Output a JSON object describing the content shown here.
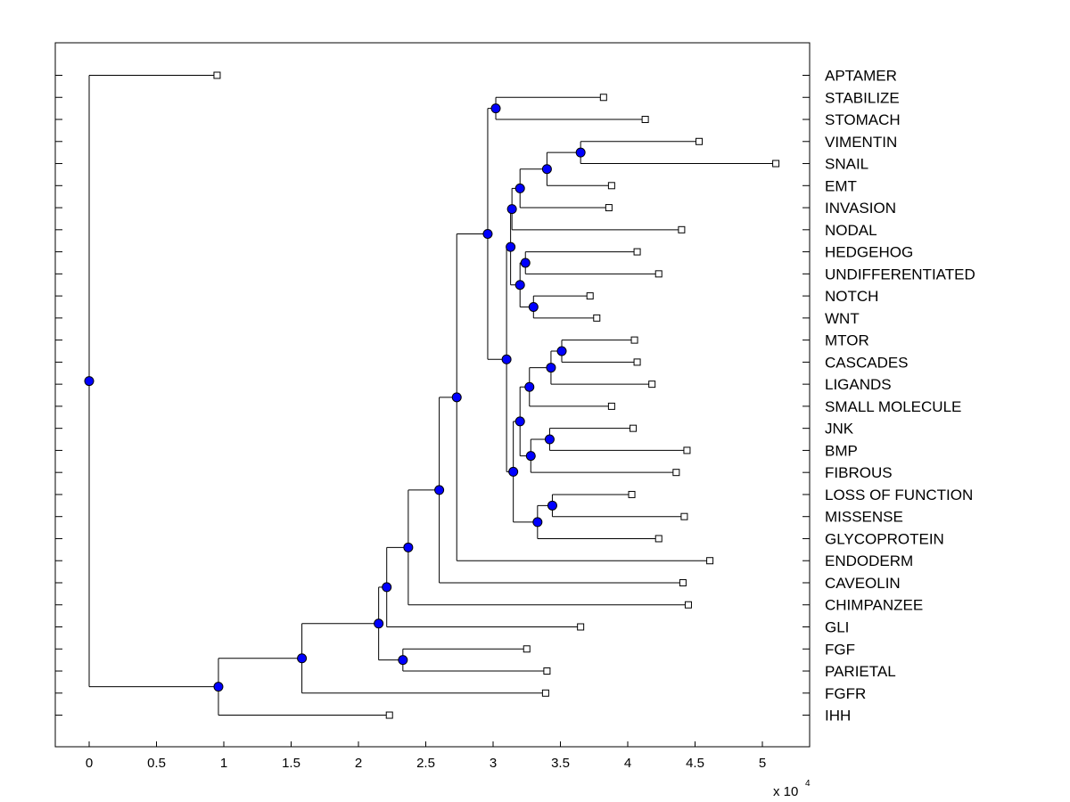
{
  "chart_data": {
    "type": "dendrogram",
    "orientation": "horizontal",
    "xaxis": {
      "ticks": [
        0,
        0.5,
        1,
        1.5,
        2,
        2.5,
        3,
        3.5,
        4,
        4.5,
        5
      ],
      "tick_labels": [
        "0",
        "0.5",
        "1",
        "1.5",
        "2",
        "2.5",
        "3",
        "3.5",
        "4",
        "4.5",
        "5"
      ],
      "range": [
        -0.25,
        5.35
      ],
      "scale_label": "x 10",
      "scale_exponent": "4"
    },
    "leaves": [
      {
        "name": "APTAMER",
        "value": 0.95
      },
      {
        "name": "STABILIZE",
        "value": 3.82
      },
      {
        "name": "STOMACH",
        "value": 4.13
      },
      {
        "name": "VIMENTIN",
        "value": 4.53
      },
      {
        "name": "SNAIL",
        "value": 5.1
      },
      {
        "name": "EMT",
        "value": 3.88
      },
      {
        "name": "INVASION",
        "value": 3.86
      },
      {
        "name": "NODAL",
        "value": 4.4
      },
      {
        "name": "HEDGEHOG",
        "value": 4.07
      },
      {
        "name": "UNDIFFERENTIATED",
        "value": 4.23
      },
      {
        "name": "NOTCH",
        "value": 3.72
      },
      {
        "name": "WNT",
        "value": 3.77
      },
      {
        "name": "MTOR",
        "value": 4.05
      },
      {
        "name": "CASCADES",
        "value": 4.07
      },
      {
        "name": "LIGANDS",
        "value": 4.18
      },
      {
        "name": "SMALL MOLECULE",
        "value": 3.88
      },
      {
        "name": "JNK",
        "value": 4.04
      },
      {
        "name": "BMP",
        "value": 4.44
      },
      {
        "name": "FIBROUS",
        "value": 4.36
      },
      {
        "name": "LOSS OF FUNCTION",
        "value": 4.03
      },
      {
        "name": "MISSENSE",
        "value": 4.42
      },
      {
        "name": "GLYCOPROTEIN",
        "value": 4.23
      },
      {
        "name": "ENDODERM",
        "value": 4.61
      },
      {
        "name": "CAVEOLIN",
        "value": 4.41
      },
      {
        "name": "CHIMPANZEE",
        "value": 4.45
      },
      {
        "name": "GLI",
        "value": 3.65
      },
      {
        "name": "FGF",
        "value": 3.25
      },
      {
        "name": "PARIETAL",
        "value": 3.4
      },
      {
        "name": "FGFR",
        "value": 3.39
      },
      {
        "name": "IHH",
        "value": 2.23
      }
    ],
    "nodes": [
      {
        "id": "n1",
        "value": 3.02,
        "children": [
          "L1",
          "L2"
        ]
      },
      {
        "id": "n2",
        "value": 3.65,
        "children": [
          "L3",
          "L4"
        ]
      },
      {
        "id": "n3",
        "value": 3.4,
        "children": [
          "n2",
          "L5"
        ]
      },
      {
        "id": "n4",
        "value": 3.2,
        "children": [
          "n3",
          "L6"
        ]
      },
      {
        "id": "n5",
        "value": 3.14,
        "children": [
          "n4",
          "L7"
        ]
      },
      {
        "id": "n6",
        "value": 3.24,
        "children": [
          "L8",
          "L9"
        ]
      },
      {
        "id": "n7",
        "value": 3.3,
        "children": [
          "L10",
          "L11"
        ]
      },
      {
        "id": "n8",
        "value": 3.2,
        "children": [
          "n6",
          "n7"
        ]
      },
      {
        "id": "n9",
        "value": 3.13,
        "children": [
          "n5",
          "n8"
        ]
      },
      {
        "id": "n10",
        "value": 3.51,
        "children": [
          "L12",
          "L13"
        ]
      },
      {
        "id": "n11",
        "value": 3.43,
        "children": [
          "n10",
          "L14"
        ]
      },
      {
        "id": "n12",
        "value": 3.27,
        "children": [
          "n11",
          "L15"
        ]
      },
      {
        "id": "n13",
        "value": 3.42,
        "children": [
          "L16",
          "L17"
        ]
      },
      {
        "id": "n14",
        "value": 3.28,
        "children": [
          "n13",
          "L18"
        ]
      },
      {
        "id": "n15",
        "value": 3.2,
        "children": [
          "n12",
          "n14"
        ]
      },
      {
        "id": "n16",
        "value": 3.44,
        "children": [
          "L19",
          "L20"
        ]
      },
      {
        "id": "n17",
        "value": 3.33,
        "children": [
          "n16",
          "L21"
        ]
      },
      {
        "id": "n18",
        "value": 3.15,
        "children": [
          "n15",
          "n17"
        ]
      },
      {
        "id": "n19",
        "value": 3.1,
        "children": [
          "n9",
          "n18"
        ]
      },
      {
        "id": "n20",
        "value": 2.96,
        "children": [
          "n1",
          "n19"
        ]
      },
      {
        "id": "n21",
        "value": 2.73,
        "children": [
          "n20",
          "L22"
        ]
      },
      {
        "id": "n22",
        "value": 2.6,
        "children": [
          "n21",
          "L23"
        ]
      },
      {
        "id": "n23",
        "value": 2.37,
        "children": [
          "n22",
          "L24"
        ]
      },
      {
        "id": "n24",
        "value": 2.21,
        "children": [
          "n23",
          "L25"
        ]
      },
      {
        "id": "n25",
        "value": 2.33,
        "children": [
          "L26",
          "L27"
        ]
      },
      {
        "id": "n26",
        "value": 2.15,
        "children": [
          "n24",
          "n25"
        ]
      },
      {
        "id": "n27",
        "value": 1.58,
        "children": [
          "n26",
          "L28"
        ]
      },
      {
        "id": "n28",
        "value": 0.96,
        "children": [
          "n27",
          "L29"
        ]
      },
      {
        "id": "n29",
        "value": 0.0,
        "children": [
          "L0",
          "n28"
        ]
      }
    ],
    "colors": {
      "internal_node": "#0000ff",
      "leaf_marker": "#ffffff",
      "line": "#000000"
    },
    "grid": false,
    "legend": "none"
  }
}
